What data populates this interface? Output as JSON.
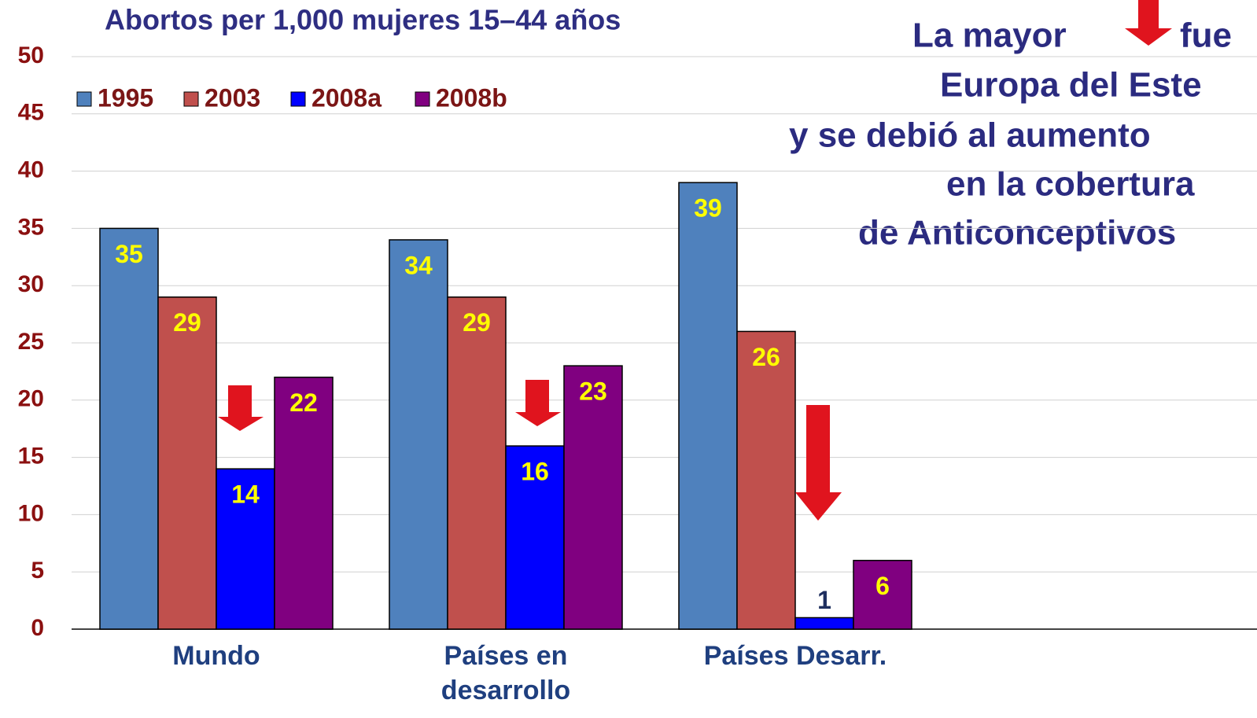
{
  "chart_data": {
    "type": "bar",
    "title": "Abortos per 1,000 mujeres 15–44 años",
    "annotation": [
      "La mayor",
      "fue",
      "Europa del Este",
      "y se debió al aumento",
      "en la cobertura",
      "de Anticonceptivos"
    ],
    "categories": [
      "Mundo",
      "Países en desarrollo",
      "Países Desarr."
    ],
    "series": [
      {
        "name": "1995",
        "color": "#4f81bd",
        "values": [
          35,
          34,
          39
        ]
      },
      {
        "name": "2003",
        "color": "#c0504d",
        "values": [
          29,
          29,
          26
        ]
      },
      {
        "name": "2008a",
        "color": "#0000ff",
        "values": [
          14,
          16,
          1
        ]
      },
      {
        "name": "2008b",
        "color": "#800080",
        "values": [
          22,
          23,
          6
        ]
      }
    ],
    "ylim": [
      0,
      50
    ],
    "yticks": [
      0,
      5,
      10,
      15,
      20,
      25,
      30,
      35,
      40,
      45,
      50
    ],
    "grid": true,
    "legend": "top-left"
  }
}
